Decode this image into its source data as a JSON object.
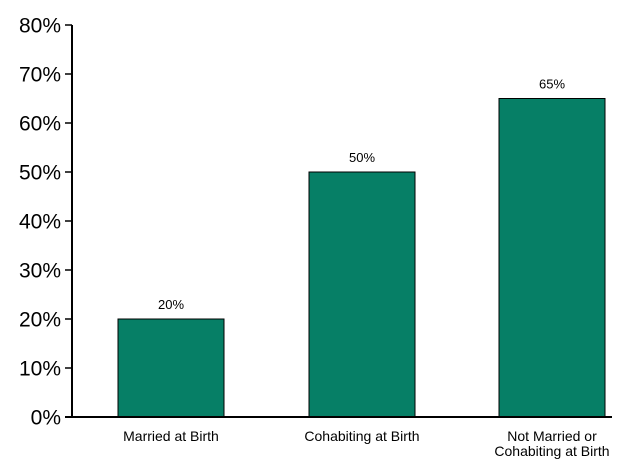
{
  "chart_data": {
    "type": "bar",
    "categories": [
      [
        "Married at Birth"
      ],
      [
        "Cohabiting at Birth"
      ],
      [
        "Not Married or",
        "Cohabiting at Birth"
      ]
    ],
    "values": [
      20,
      50,
      65
    ],
    "data_labels": [
      "20%",
      "50%",
      "65%"
    ],
    "title": "",
    "xlabel": "",
    "ylabel": "",
    "ylim": [
      0,
      80
    ],
    "yticks": [
      0,
      10,
      20,
      30,
      40,
      50,
      60,
      70,
      80
    ],
    "ytick_labels": [
      "0%",
      "10%",
      "20%",
      "30%",
      "40%",
      "50%",
      "60%",
      "70%",
      "80%"
    ],
    "grid": false,
    "legend": "none",
    "bar_color": "#067f66",
    "bar_outline_color": "#000000"
  }
}
